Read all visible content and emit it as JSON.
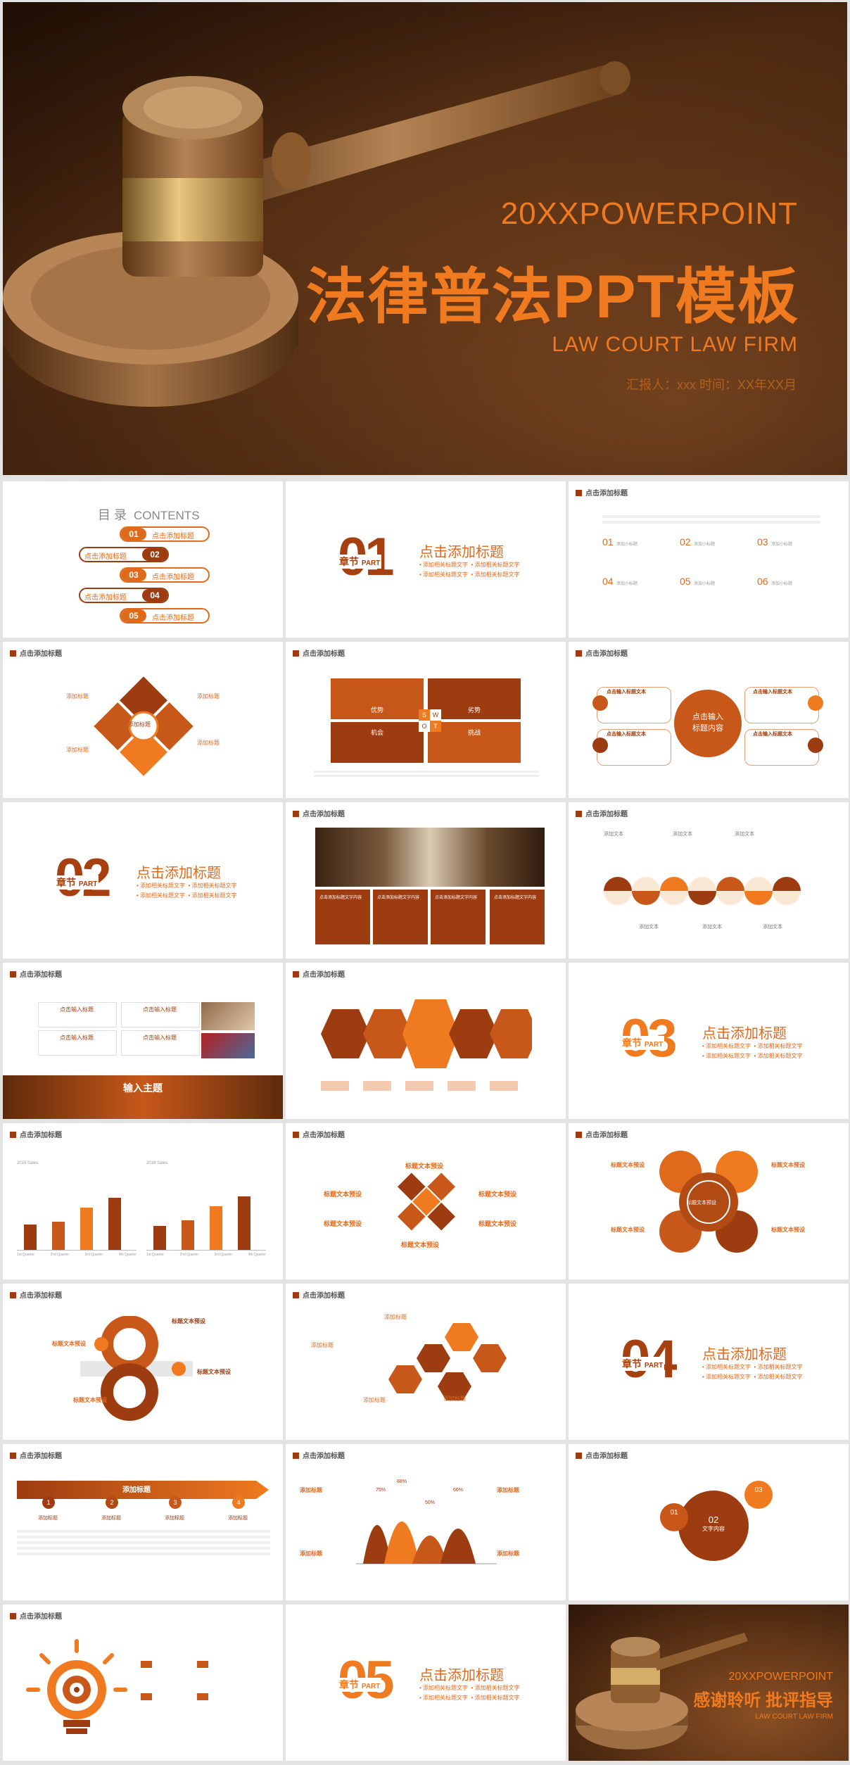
{
  "cover": {
    "eng": "20XXPOWERPOINT",
    "title": "法律普法PPT模板",
    "subtitle": "LAW COURT LAW FIRM",
    "info": "汇报人：xxx   时间：XX年XX月"
  },
  "common": {
    "slide_title": "点击添加标题",
    "section_title": "点击添加标题",
    "section_word": "章节",
    "part_word": "PART",
    "b1": "添加相关标题文字",
    "b2": "添加相关标题文字",
    "b3": "添加相关标题文字",
    "b4": "添加相关标题文字"
  },
  "toc": {
    "heading": "目 录",
    "heading_en": "CONTENTS",
    "items": [
      {
        "num": "01",
        "label": "点击添加标题"
      },
      {
        "num": "02",
        "label": "点击添加标题"
      },
      {
        "num": "03",
        "label": "点击添加标题"
      },
      {
        "num": "04",
        "label": "点击添加标题"
      },
      {
        "num": "05",
        "label": "点击添加标题"
      }
    ]
  },
  "sections": [
    "01",
    "02",
    "03",
    "04",
    "05"
  ],
  "grid6": {
    "items": [
      {
        "num": "01",
        "label": "添加小标题"
      },
      {
        "num": "02",
        "label": "添加小标题"
      },
      {
        "num": "03",
        "label": "添加小标题"
      },
      {
        "num": "04",
        "label": "添加小标题"
      },
      {
        "num": "05",
        "label": "添加小标题"
      },
      {
        "num": "06",
        "label": "添加小标题"
      }
    ]
  },
  "diamond": {
    "left": "添加标题",
    "center": "添加标题",
    "right": "添加标题",
    "left2": "添加标题",
    "right2": "添加标题"
  },
  "swot": {
    "s": "S",
    "w": "W",
    "o": "O",
    "t": "T",
    "strength": "优势",
    "weakness": "劣势",
    "opportunity": "机会",
    "threat": "挑战"
  },
  "circle4": {
    "center": "点击输入\n标题内容",
    "item": "点击输入标题文本"
  },
  "photo_cols": {
    "label": "点击添加标题文字内容"
  },
  "semicircle": {
    "label": "添加文本"
  },
  "cards": {
    "label": "点击输入标题",
    "banner": "输入主题"
  },
  "bars": {
    "left_title": "2015 Sales",
    "right_title": "2016 Sales",
    "categories": [
      "1st Quarter",
      "2nd Quarter",
      "3rd Quarter",
      "4th Quarter"
    ]
  },
  "pyramid": {
    "label": "标题文本预设"
  },
  "ring": {
    "center": "标题文本预设",
    "label": "标题文本预设"
  },
  "timeline": {
    "banner": "添加标题",
    "label": "添加标题",
    "steps": [
      "1",
      "2",
      "3",
      "4"
    ]
  },
  "peaks": {
    "label": "添加标题",
    "values": [
      "75%",
      "88%",
      "50%",
      "66%"
    ]
  },
  "circles3": {
    "n1": "01",
    "n2": "02",
    "n3": "03",
    "label": "文字内容"
  },
  "ending": {
    "eng": "20XXPOWERPOINT",
    "title": "感谢聆听 批评指导",
    "sub": "LAW COURT LAW FIRM"
  },
  "colors": {
    "accent": "#f07a1f",
    "dark": "#9c3c10",
    "mid": "#c8581a"
  }
}
